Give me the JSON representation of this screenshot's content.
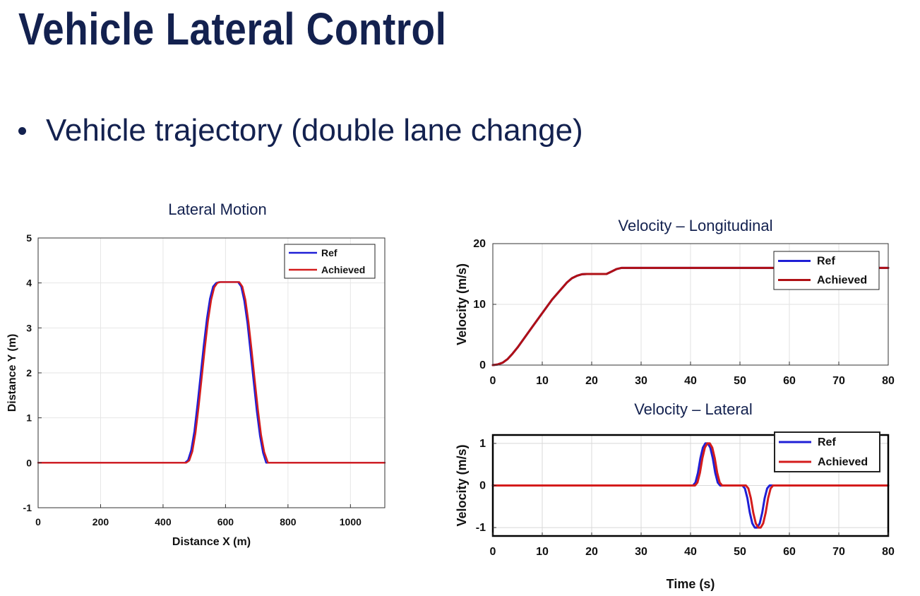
{
  "slide": {
    "title": "Vehicle Lateral Control",
    "bullet": "Vehicle trajectory (double lane change)"
  },
  "colors": {
    "ref": "#1f1fd6",
    "achieved": "#d41c1c",
    "title": "#13214f"
  },
  "chart_data": [
    {
      "type": "line",
      "title": "Lateral Motion",
      "xlabel": "Distance X (m)",
      "ylabel": "Distance Y (m)",
      "xlim": [
        0,
        1110
      ],
      "ylim": [
        -1,
        5
      ],
      "xticks": [
        0,
        200,
        400,
        600,
        800,
        1000
      ],
      "yticks": [
        -1,
        0,
        1,
        2,
        3,
        4,
        5
      ],
      "grid": true,
      "legend": "top-right",
      "series": [
        {
          "name": "Ref",
          "color": "#1f1fd6",
          "x": [
            0,
            470,
            480,
            490,
            500,
            510,
            520,
            530,
            540,
            550,
            560,
            570,
            580,
            640,
            650,
            660,
            670,
            680,
            690,
            700,
            710,
            720,
            730,
            1110
          ],
          "y": [
            0,
            0,
            0.06,
            0.28,
            0.7,
            1.3,
            1.95,
            2.6,
            3.2,
            3.65,
            3.92,
            4.0,
            4.02,
            4.02,
            3.92,
            3.6,
            3.1,
            2.45,
            1.8,
            1.15,
            0.6,
            0.22,
            0,
            0
          ]
        },
        {
          "name": "Achieved",
          "color": "#d41c1c",
          "x": [
            0,
            474,
            484,
            494,
            504,
            514,
            524,
            534,
            544,
            554,
            564,
            574,
            584,
            644,
            654,
            664,
            674,
            684,
            694,
            704,
            714,
            724,
            736,
            1110
          ],
          "y": [
            0,
            0,
            0.05,
            0.25,
            0.66,
            1.25,
            1.9,
            2.55,
            3.15,
            3.62,
            3.9,
            4.0,
            4.02,
            4.02,
            3.92,
            3.62,
            3.12,
            2.48,
            1.82,
            1.18,
            0.62,
            0.24,
            0,
            0
          ]
        }
      ]
    },
    {
      "type": "line",
      "title": "Velocity – Longitudinal",
      "xlabel": "",
      "ylabel": "Velocity (m/s)",
      "xlim": [
        0,
        80
      ],
      "ylim": [
        0,
        20
      ],
      "xticks": [
        0,
        10,
        20,
        30,
        40,
        50,
        60,
        70,
        80
      ],
      "yticks": [
        0,
        10,
        20
      ],
      "grid": true,
      "legend": "top-right",
      "series": [
        {
          "name": "Ref",
          "color": "#1f1fd6",
          "x": [
            0,
            1,
            2,
            3,
            4,
            5,
            8,
            12,
            15,
            16,
            17,
            18,
            19,
            20,
            23,
            24,
            25,
            26,
            80
          ],
          "y": [
            0,
            0.1,
            0.4,
            1.0,
            1.9,
            2.9,
            6.3,
            10.8,
            13.6,
            14.3,
            14.7,
            14.95,
            15,
            15,
            15,
            15.4,
            15.8,
            16,
            16
          ]
        },
        {
          "name": "Achieved",
          "color": "#b01015",
          "x": [
            0,
            1,
            2,
            3,
            4,
            5,
            8,
            12,
            15,
            16,
            17,
            18,
            19,
            20,
            23,
            24,
            25,
            26,
            80
          ],
          "y": [
            0,
            0.1,
            0.4,
            1.0,
            1.9,
            2.9,
            6.3,
            10.8,
            13.6,
            14.3,
            14.7,
            14.95,
            15,
            15,
            15,
            15.4,
            15.8,
            16,
            16
          ]
        }
      ]
    },
    {
      "type": "line",
      "title": "Velocity – Lateral",
      "xlabel": "Time (s)",
      "ylabel": "Velocity (m/s)",
      "xlim": [
        0,
        80
      ],
      "ylim": [
        -1.2,
        1.2
      ],
      "xticks": [
        0,
        10,
        20,
        30,
        40,
        50,
        60,
        70,
        80
      ],
      "yticks": [
        -1,
        0,
        1
      ],
      "grid": true,
      "legend": "top-right",
      "series": [
        {
          "name": "Ref",
          "color": "#1f1fd6",
          "x": [
            0,
            40.5,
            41,
            41.5,
            42,
            42.5,
            43,
            43.5,
            44,
            44.5,
            45,
            45.5,
            46,
            46.5,
            50.5,
            51,
            51.5,
            52,
            52.5,
            53,
            53.5,
            54,
            54.5,
            55,
            55.5,
            56,
            56.5,
            80
          ],
          "y": [
            0,
            0,
            0.07,
            0.3,
            0.65,
            0.9,
            1.0,
            1.0,
            0.9,
            0.65,
            0.3,
            0.07,
            0,
            0,
            0,
            -0.07,
            -0.3,
            -0.65,
            -0.9,
            -1.0,
            -1.0,
            -0.9,
            -0.65,
            -0.3,
            -0.07,
            0,
            0,
            0
          ]
        },
        {
          "name": "Achieved",
          "color": "#d41c1c",
          "x": [
            0,
            40.9,
            41.4,
            41.9,
            42.4,
            42.9,
            43.4,
            43.9,
            44.4,
            44.9,
            45.4,
            45.9,
            46.4,
            46.9,
            51.2,
            51.7,
            52.2,
            52.7,
            53.2,
            53.7,
            54.2,
            54.7,
            55.2,
            55.7,
            56.2,
            56.7,
            57.2,
            80
          ],
          "y": [
            0,
            0,
            0.07,
            0.3,
            0.65,
            0.9,
            1.0,
            1.0,
            0.9,
            0.65,
            0.3,
            0.07,
            0,
            0,
            0,
            -0.07,
            -0.3,
            -0.65,
            -0.9,
            -1.0,
            -1.0,
            -0.9,
            -0.65,
            -0.3,
            -0.07,
            0,
            0,
            0
          ]
        }
      ]
    }
  ]
}
